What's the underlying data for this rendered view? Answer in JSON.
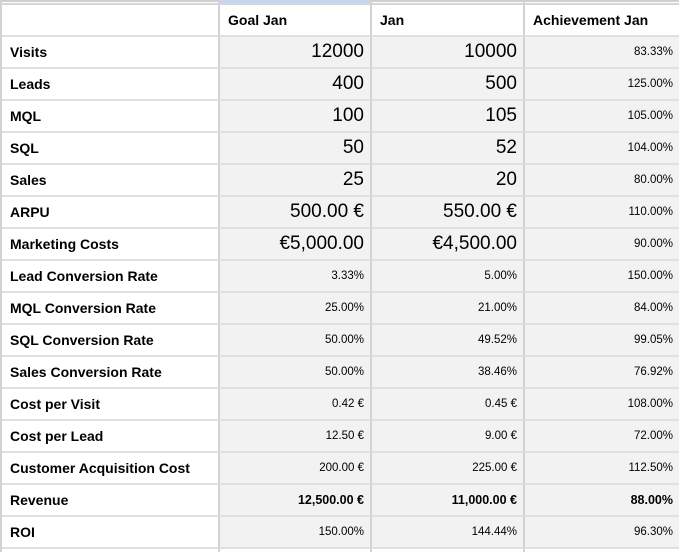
{
  "app": {
    "description": "Spreadsheet view of marketing KPI table for January",
    "colors": {
      "cell_fill": "#f2f2f2",
      "gridline_vertical": "#d2d2d2",
      "gridline_horizontal": "#e0e0e0",
      "highlight_blue": "#c8d6ee",
      "text": "#000000"
    }
  },
  "table": {
    "columns": [
      {
        "key": "label",
        "header": ""
      },
      {
        "key": "goal",
        "header": "Goal Jan"
      },
      {
        "key": "actual",
        "header": "Jan"
      },
      {
        "key": "achievement",
        "header": "Achievement Jan"
      }
    ],
    "rows": [
      {
        "label": "Visits",
        "goal": "12000",
        "actual": "10000",
        "achievement": "83.33%",
        "value_size": "large",
        "bold": false
      },
      {
        "label": "Leads",
        "goal": "400",
        "actual": "500",
        "achievement": "125.00%",
        "value_size": "large",
        "bold": false
      },
      {
        "label": "MQL",
        "goal": "100",
        "actual": "105",
        "achievement": "105.00%",
        "value_size": "large",
        "bold": false
      },
      {
        "label": "SQL",
        "goal": "50",
        "actual": "52",
        "achievement": "104.00%",
        "value_size": "large",
        "bold": false
      },
      {
        "label": "Sales",
        "goal": "25",
        "actual": "20",
        "achievement": "80.00%",
        "value_size": "large",
        "bold": false
      },
      {
        "label": "ARPU",
        "goal": "500.00 €",
        "actual": "550.00 €",
        "achievement": "110.00%",
        "value_size": "large",
        "bold": false
      },
      {
        "label": "Marketing Costs",
        "goal": "€5,000.00",
        "actual": "€4,500.00",
        "achievement": "90.00%",
        "value_size": "large",
        "bold": false
      },
      {
        "label": "Lead Conversion Rate",
        "goal": "3.33%",
        "actual": "5.00%",
        "achievement": "150.00%",
        "value_size": "small",
        "bold": false
      },
      {
        "label": "MQL Conversion Rate",
        "goal": "25.00%",
        "actual": "21.00%",
        "achievement": "84.00%",
        "value_size": "small",
        "bold": false
      },
      {
        "label": "SQL Conversion Rate",
        "goal": "50.00%",
        "actual": "49.52%",
        "achievement": "99.05%",
        "value_size": "small",
        "bold": false
      },
      {
        "label": "Sales Conversion Rate",
        "goal": "50.00%",
        "actual": "38.46%",
        "achievement": "76.92%",
        "value_size": "small",
        "bold": false
      },
      {
        "label": "Cost per Visit",
        "goal": "0.42 €",
        "actual": "0.45 €",
        "achievement": "108.00%",
        "value_size": "small",
        "bold": false
      },
      {
        "label": "Cost per Lead",
        "goal": "12.50 €",
        "actual": "9.00 €",
        "achievement": "72.00%",
        "value_size": "small",
        "bold": false
      },
      {
        "label": "Customer Acquisition Cost",
        "goal": "200.00 €",
        "actual": "225.00 €",
        "achievement": "112.50%",
        "value_size": "small",
        "bold": false
      },
      {
        "label": "Revenue",
        "goal": "12,500.00 €",
        "actual": "11,000.00 €",
        "achievement": "88.00%",
        "value_size": "small",
        "bold": true
      },
      {
        "label": "ROI",
        "goal": "150.00%",
        "actual": "144.44%",
        "achievement": "96.30%",
        "value_size": "small",
        "bold": false
      }
    ]
  }
}
